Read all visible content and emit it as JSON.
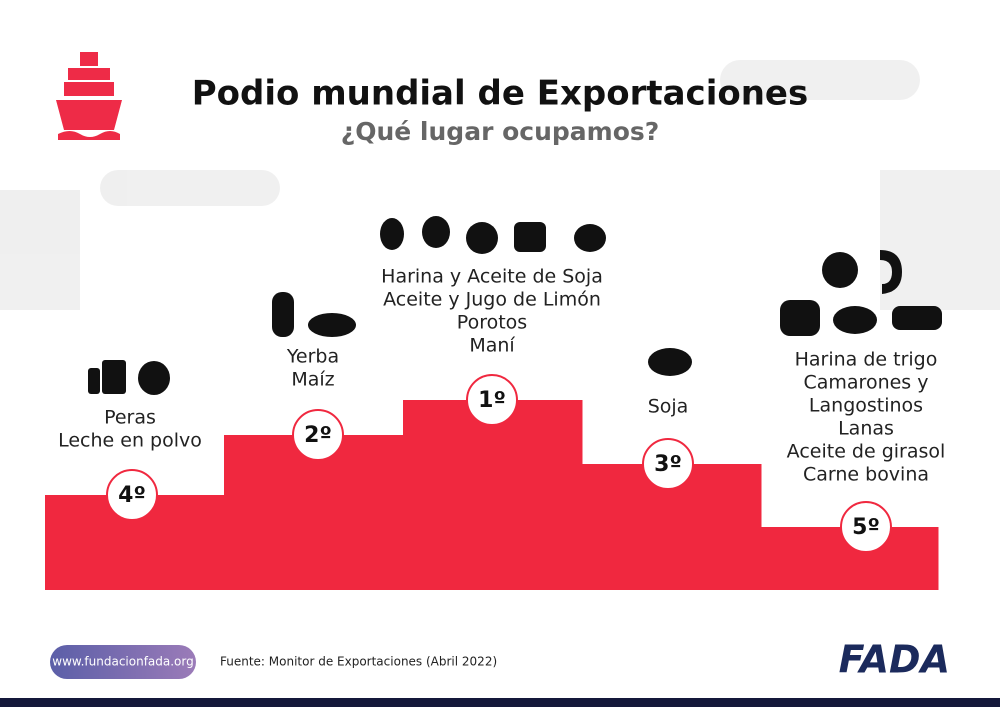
{
  "header": {
    "title": "Podio mundial de Exportaciones",
    "subtitle": "¿Qué lugar ocupamos?"
  },
  "podium": [
    {
      "rank": "4º",
      "products": [
        "Peras",
        "Leche en polvo"
      ]
    },
    {
      "rank": "2º",
      "products": [
        "Yerba",
        "Maíz"
      ]
    },
    {
      "rank": "1º",
      "products": [
        "Harina y Aceite de Soja",
        "Aceite y Jugo de Limón",
        "Porotos",
        "Maní"
      ]
    },
    {
      "rank": "3º",
      "products": [
        "Soja"
      ]
    },
    {
      "rank": "5º",
      "products": [
        "Harina de trigo",
        "Camarones y",
        "Langostinos",
        "Lanas",
        "Aceite de girasol",
        "Carne bovina"
      ]
    }
  ],
  "footer": {
    "website": "www.fundacionfada.org",
    "source": "Fuente: Monitor de Exportaciones (Abril 2022)",
    "logo": "FADA"
  }
}
